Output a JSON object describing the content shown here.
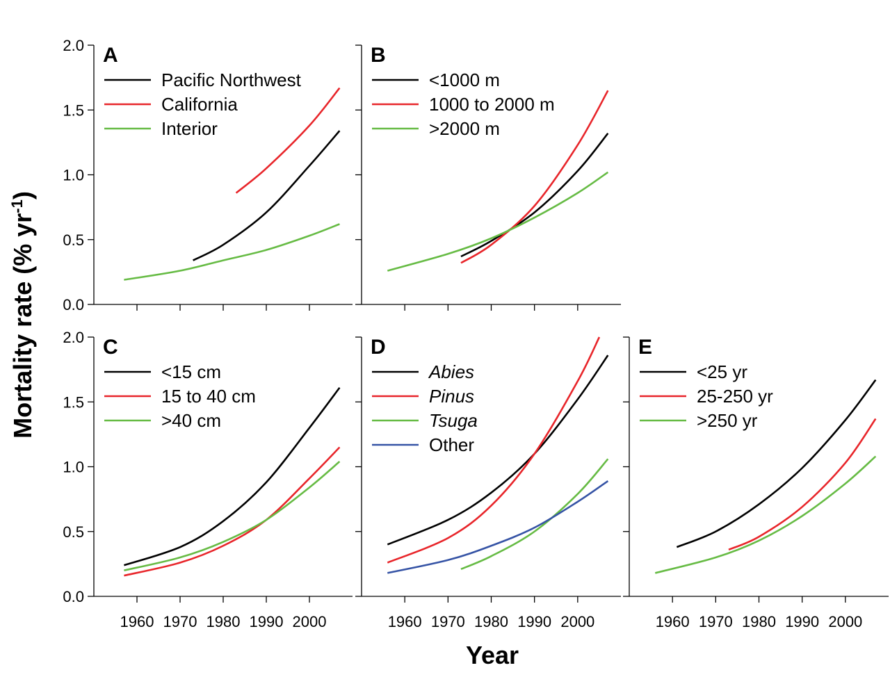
{
  "figure": {
    "xlabel": "Year",
    "ylabel_main": "Mortality rate (% yr",
    "ylabel_sup": "-1",
    "ylabel_close": ")"
  },
  "chart_data": [
    {
      "id": "A",
      "type": "line",
      "panel_label": "A",
      "xlim": [
        1950,
        2010
      ],
      "ylim": [
        0,
        2.0
      ],
      "xticks": [
        1960,
        1970,
        1980,
        1990,
        2000
      ],
      "yticks": [
        0.0,
        0.5,
        1.0,
        1.5,
        2.0
      ],
      "ytick_labels": [
        "0.0",
        "0.5",
        "1.0",
        "1.5",
        "2.0"
      ],
      "show_xtick_labels": false,
      "show_ytick_labels": true,
      "legend_position": "top-left",
      "series": [
        {
          "name": "Pacific Northwest",
          "color": "#000000",
          "italic": false,
          "x": [
            1973,
            1980,
            1990,
            2000,
            2007
          ],
          "y": [
            0.34,
            0.46,
            0.71,
            1.07,
            1.34
          ]
        },
        {
          "name": "California",
          "color": "#e8252a",
          "italic": false,
          "x": [
            1983,
            1990,
            2000,
            2007
          ],
          "y": [
            0.86,
            1.05,
            1.38,
            1.67
          ]
        },
        {
          "name": "Interior",
          "color": "#66bb44",
          "italic": false,
          "x": [
            1957,
            1970,
            1980,
            1990,
            2000,
            2007
          ],
          "y": [
            0.19,
            0.26,
            0.34,
            0.42,
            0.53,
            0.62
          ]
        }
      ]
    },
    {
      "id": "B",
      "type": "line",
      "panel_label": "B",
      "xlim": [
        1950,
        2010
      ],
      "ylim": [
        0,
        2.0
      ],
      "xticks": [
        1960,
        1970,
        1980,
        1990,
        2000
      ],
      "yticks": [
        0.0,
        0.5,
        1.0,
        1.5,
        2.0
      ],
      "ytick_labels": [
        "0.0",
        "0.5",
        "1.0",
        "1.5",
        "2.0"
      ],
      "show_xtick_labels": false,
      "show_ytick_labels": false,
      "legend_position": "top-left",
      "series": [
        {
          "name": "<1000 m",
          "color": "#000000",
          "italic": false,
          "x": [
            1973,
            1980,
            1990,
            2000,
            2007
          ],
          "y": [
            0.37,
            0.49,
            0.71,
            1.03,
            1.32
          ]
        },
        {
          "name": "1000 to 2000 m",
          "color": "#e8252a",
          "italic": false,
          "x": [
            1973,
            1980,
            1990,
            2000,
            2007
          ],
          "y": [
            0.32,
            0.46,
            0.76,
            1.23,
            1.65
          ]
        },
        {
          "name": ">2000 m",
          "color": "#66bb44",
          "italic": false,
          "x": [
            1956,
            1970,
            1980,
            1990,
            2000,
            2007
          ],
          "y": [
            0.26,
            0.39,
            0.51,
            0.67,
            0.86,
            1.02
          ]
        }
      ]
    },
    {
      "id": "C",
      "type": "line",
      "panel_label": "C",
      "xlim": [
        1950,
        2010
      ],
      "ylim": [
        0,
        2.0
      ],
      "xticks": [
        1960,
        1970,
        1980,
        1990,
        2000
      ],
      "xtick_labels": [
        "1960",
        "1970",
        "1980",
        "1990",
        "2000"
      ],
      "yticks": [
        0.0,
        0.5,
        1.0,
        1.5,
        2.0
      ],
      "ytick_labels": [
        "0.0",
        "0.5",
        "1.0",
        "1.5",
        "2.0"
      ],
      "show_xtick_labels": true,
      "show_ytick_labels": true,
      "legend_position": "top-left",
      "series": [
        {
          "name": "<15 cm",
          "color": "#000000",
          "italic": false,
          "x": [
            1957,
            1970,
            1980,
            1990,
            2000,
            2007
          ],
          "y": [
            0.24,
            0.38,
            0.58,
            0.88,
            1.3,
            1.61
          ]
        },
        {
          "name": "15 to 40 cm",
          "color": "#e8252a",
          "italic": false,
          "x": [
            1957,
            1970,
            1980,
            1990,
            2000,
            2007
          ],
          "y": [
            0.16,
            0.26,
            0.39,
            0.59,
            0.91,
            1.15
          ]
        },
        {
          "name": ">40 cm",
          "color": "#66bb44",
          "italic": false,
          "x": [
            1957,
            1970,
            1980,
            1990,
            2000,
            2007
          ],
          "y": [
            0.2,
            0.3,
            0.42,
            0.59,
            0.84,
            1.04
          ]
        }
      ]
    },
    {
      "id": "D",
      "type": "line",
      "panel_label": "D",
      "xlim": [
        1950,
        2010
      ],
      "ylim": [
        0,
        2.0
      ],
      "xticks": [
        1960,
        1970,
        1980,
        1990,
        2000
      ],
      "xtick_labels": [
        "1960",
        "1970",
        "1980",
        "1990",
        "2000"
      ],
      "yticks": [
        0.0,
        0.5,
        1.0,
        1.5,
        2.0
      ],
      "ytick_labels": [
        "0.0",
        "0.5",
        "1.0",
        "1.5",
        "2.0"
      ],
      "show_xtick_labels": true,
      "show_ytick_labels": false,
      "legend_position": "top-left",
      "series": [
        {
          "name": "Abies",
          "color": "#000000",
          "italic": true,
          "x": [
            1956,
            1970,
            1980,
            1990,
            2000,
            2007
          ],
          "y": [
            0.4,
            0.59,
            0.8,
            1.1,
            1.52,
            1.86
          ]
        },
        {
          "name": "Pinus",
          "color": "#e8252a",
          "italic": true,
          "x": [
            1956,
            1970,
            1980,
            1990,
            2000,
            2005
          ],
          "y": [
            0.26,
            0.45,
            0.7,
            1.1,
            1.66,
            2.0
          ]
        },
        {
          "name": "Tsuga",
          "color": "#66bb44",
          "italic": true,
          "x": [
            1973,
            1980,
            1990,
            2000,
            2007
          ],
          "y": [
            0.21,
            0.31,
            0.5,
            0.79,
            1.06
          ]
        },
        {
          "name": "Other",
          "color": "#3553a5",
          "italic": false,
          "x": [
            1956,
            1970,
            1980,
            1990,
            2000,
            2007
          ],
          "y": [
            0.18,
            0.28,
            0.39,
            0.53,
            0.73,
            0.89
          ]
        }
      ]
    },
    {
      "id": "E",
      "type": "line",
      "panel_label": "E",
      "xlim": [
        1950,
        2010
      ],
      "ylim": [
        0,
        2.0
      ],
      "xticks": [
        1960,
        1970,
        1980,
        1990,
        2000
      ],
      "xtick_labels": [
        "1960",
        "1970",
        "1980",
        "1990",
        "2000"
      ],
      "yticks": [
        0.0,
        0.5,
        1.0,
        1.5,
        2.0
      ],
      "ytick_labels": [
        "0.0",
        "0.5",
        "1.0",
        "1.5",
        "2.0"
      ],
      "show_xtick_labels": true,
      "show_ytick_labels": false,
      "legend_position": "top-left",
      "series": [
        {
          "name": "<25 yr",
          "color": "#000000",
          "italic": false,
          "x": [
            1961,
            1970,
            1980,
            1990,
            2000,
            2007
          ],
          "y": [
            0.38,
            0.5,
            0.71,
            0.99,
            1.36,
            1.67
          ]
        },
        {
          "name": "25-250 yr",
          "color": "#e8252a",
          "italic": false,
          "x": [
            1973,
            1980,
            1990,
            2000,
            2007
          ],
          "y": [
            0.36,
            0.46,
            0.69,
            1.03,
            1.37
          ]
        },
        {
          "name": ">250 yr",
          "color": "#66bb44",
          "italic": false,
          "x": [
            1956,
            1970,
            1980,
            1990,
            2000,
            2007
          ],
          "y": [
            0.18,
            0.3,
            0.43,
            0.62,
            0.87,
            1.08
          ]
        }
      ]
    }
  ]
}
